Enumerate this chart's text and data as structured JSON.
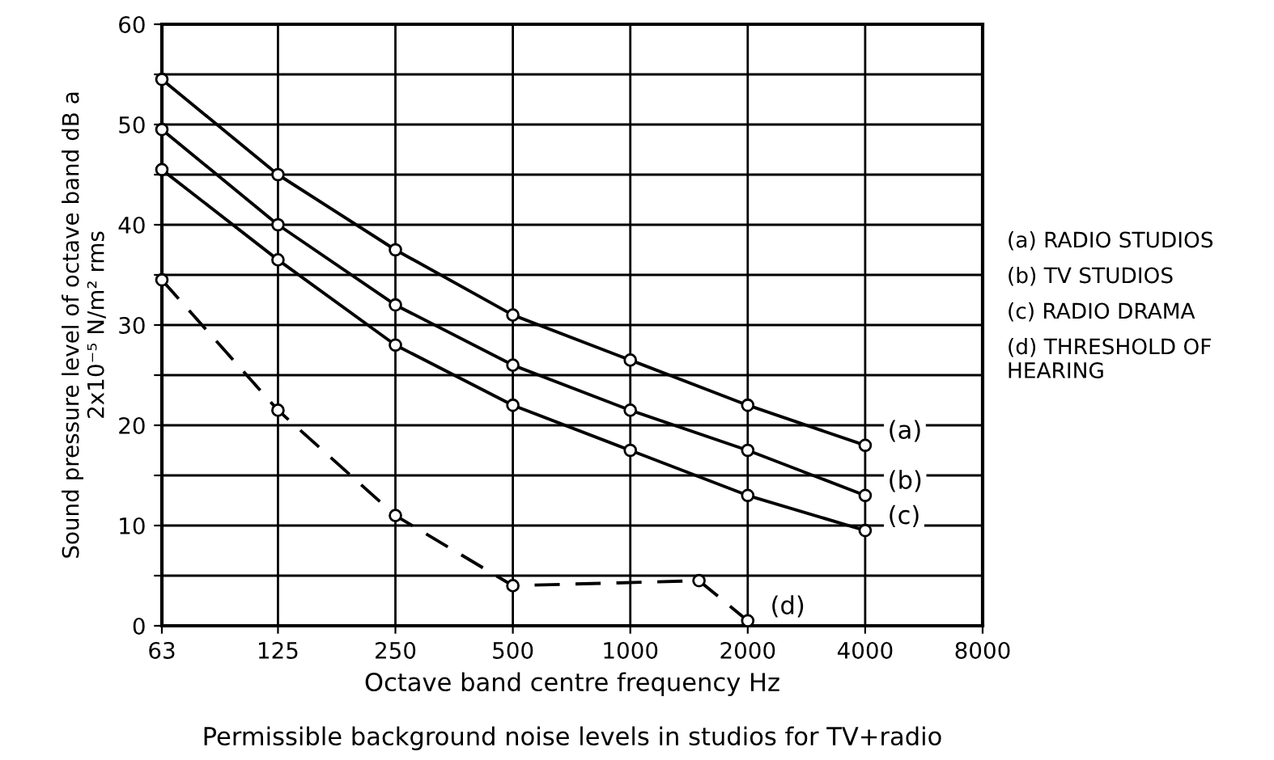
{
  "chart_data": {
    "type": "line",
    "xlabel": "Octave band centre frequency Hz",
    "ylabel": "Sound pressure level of octave band dB a\n2x10⁻⁵ N/m² rms",
    "x": [
      63,
      125,
      250,
      500,
      1000,
      2000,
      4000
    ],
    "series": [
      {
        "name": "(a)",
        "color": "#000000",
        "values": [
          54.5,
          45,
          37.5,
          31,
          26.5,
          22,
          18
        ]
      },
      {
        "name": "(b)",
        "color": "#000000",
        "values": [
          49.5,
          40,
          32,
          26,
          21.5,
          17.5,
          13
        ]
      },
      {
        "name": "(c)",
        "color": "#000000",
        "values": [
          45.5,
          36.5,
          28,
          22,
          17.5,
          13,
          9.5
        ]
      },
      {
        "name": "(d)",
        "color": "#000000",
        "line_style": "dashed",
        "x": [
          63,
          125,
          250,
          500,
          1500,
          2000
        ],
        "values": [
          34.5,
          21.5,
          11,
          4,
          4.5,
          0.5
        ]
      }
    ],
    "marker": "circle",
    "log": "x",
    "xlim": [
      63,
      8000
    ],
    "xticks": [
      63,
      125,
      250,
      500,
      1000,
      2000,
      4000,
      8000
    ],
    "ylim": [
      0,
      60
    ],
    "yticks": [
      0,
      {
        "value": 5,
        "label": null
      },
      10,
      {
        "value": 15,
        "label": null
      },
      20,
      {
        "value": 25,
        "label": null
      },
      30,
      {
        "value": 35,
        "label": null
      },
      40,
      {
        "value": 45,
        "label": null
      },
      50,
      {
        "value": 55,
        "label": null
      },
      60
    ],
    "grid": true,
    "annotations": [
      "(a) RADIO STUDIOS",
      "(b) TV STUDIOS",
      "(c) RADIO DRAMA",
      "(d) THRESHOLD OF\nHEARING",
      "Permissible background noise levels in studios for TV+radio"
    ]
  }
}
